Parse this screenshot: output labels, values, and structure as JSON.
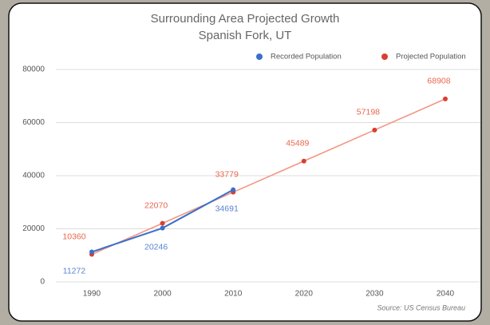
{
  "chart_data": {
    "type": "line",
    "title": "Surrounding Area Projected Growth",
    "subtitle": "Spanish Fork, UT",
    "categories": [
      "1990",
      "2000",
      "2010",
      "2020",
      "2030",
      "2040"
    ],
    "series": [
      {
        "name": "Recorded Population",
        "color": "#3b6fcb",
        "line_color": "#3b6fcb",
        "label_color": "#5b82d2",
        "values": [
          11272,
          20246,
          34691,
          null,
          null,
          null
        ]
      },
      {
        "name": "Projected Population",
        "color": "#d7402f",
        "line_color": "#f39683",
        "label_color": "#e8674e",
        "values": [
          10360,
          22070,
          33779,
          45489,
          57198,
          68908
        ]
      }
    ],
    "ylim": [
      0,
      80000
    ],
    "yticks": [
      0,
      20000,
      40000,
      60000,
      80000
    ],
    "grid": true,
    "annotation": "Source: US Census Bureau"
  }
}
